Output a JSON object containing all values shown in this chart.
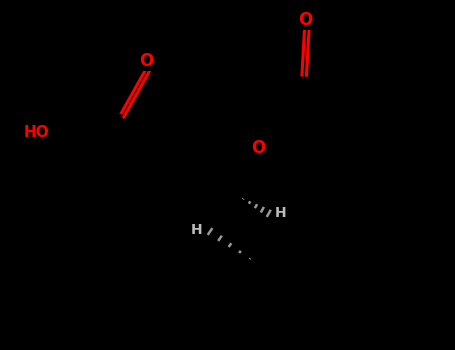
{
  "bg_color": "#000000",
  "bond_color": "#000000",
  "oxygen_color": "#ff0000",
  "line_width": 2.2,
  "xlim": [
    0,
    10
  ],
  "ylim": [
    0,
    7.7
  ]
}
